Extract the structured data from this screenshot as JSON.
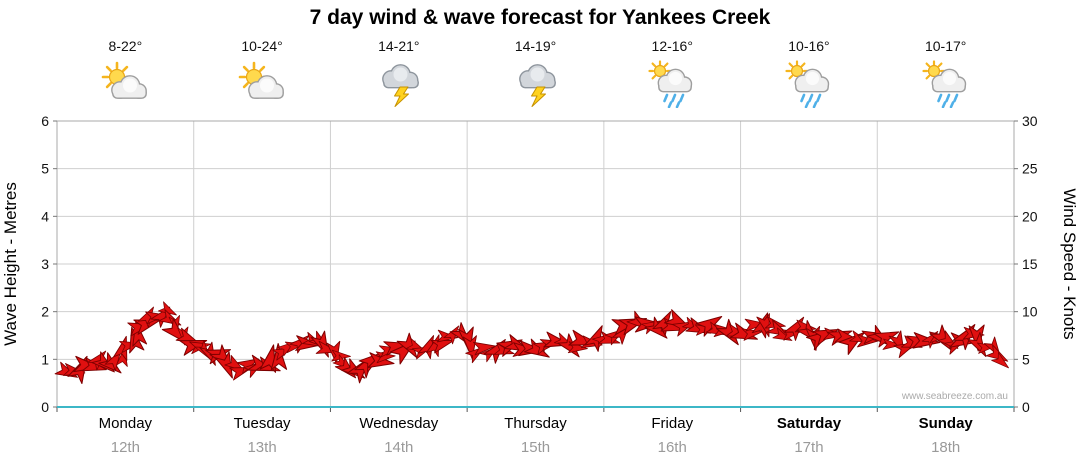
{
  "title": "7 day wind & wave forecast for Yankees Creek",
  "watermark": "www.seabreeze.com.au",
  "axes": {
    "left_label": "Wave Height - Metres",
    "right_label": "Wind Speed - Knots",
    "left_ticks": [
      0,
      1,
      2,
      3,
      4,
      5,
      6
    ],
    "right_ticks": [
      0,
      5,
      10,
      15,
      20,
      25,
      30
    ]
  },
  "colors": {
    "barb": "#e01010",
    "barb_outline": "#7e0000",
    "baseline": "#3cb7c7",
    "grid": "#cfcfcf",
    "border": "#a8a8a8",
    "tick": "#777777",
    "date_text": "#9a9a9a",
    "watermark_text": "#aaaaaa"
  },
  "days": [
    {
      "name": "Monday",
      "date": "12th",
      "temp": "8-22°",
      "icon": "sun-cloud",
      "bold": false
    },
    {
      "name": "Tuesday",
      "date": "13th",
      "temp": "10-24°",
      "icon": "sun-cloud",
      "bold": false
    },
    {
      "name": "Wednesday",
      "date": "14th",
      "temp": "14-21°",
      "icon": "storm",
      "bold": false
    },
    {
      "name": "Thursday",
      "date": "15th",
      "temp": "14-19°",
      "icon": "storm",
      "bold": false
    },
    {
      "name": "Friday",
      "date": "16th",
      "temp": "12-16°",
      "icon": "sun-cloud-rain",
      "bold": false
    },
    {
      "name": "Saturday",
      "date": "17th",
      "temp": "10-16°",
      "icon": "sun-cloud-rain",
      "bold": true
    },
    {
      "name": "Sunday",
      "date": "18th",
      "temp": "10-17°",
      "icon": "sun-cloud-rain",
      "bold": true
    }
  ],
  "chart_data": {
    "type": "line",
    "title": "7 day wind & wave forecast for Yankees Creek",
    "ylabel": "Wave Height - Metres",
    "ylabel_right": "Wind Speed - Knots",
    "ylim_left": [
      0,
      6
    ],
    "ylim_right": [
      0,
      30
    ],
    "grid": true,
    "categories": [
      "Monday 12th",
      "Tuesday 13th",
      "Wednesday 14th",
      "Thursday 15th",
      "Friday 16th",
      "Saturday 17th",
      "Sunday 18th"
    ],
    "series": [
      {
        "name": "Wind Speed (knots)",
        "marker": "red-wind-barb",
        "points_per_day": 8,
        "values": [
          3.5,
          4.2,
          5.0,
          4.6,
          7.0,
          9.6,
          9.9,
          7.0,
          6.5,
          5.5,
          4.2,
          4.0,
          4.4,
          6.2,
          7.0,
          7.2,
          5.0,
          3.8,
          4.6,
          5.8,
          6.4,
          6.0,
          6.8,
          7.4,
          6.0,
          5.8,
          6.2,
          6.0,
          6.2,
          6.6,
          6.4,
          7.4,
          7.4,
          8.6,
          9.0,
          8.4,
          8.8,
          8.0,
          8.4,
          7.8,
          8.0,
          9.0,
          7.6,
          8.2,
          7.0,
          7.6,
          7.0,
          7.4,
          7.0,
          6.4,
          6.8,
          7.6,
          6.6,
          7.8,
          6.2,
          4.8
        ]
      }
    ]
  }
}
